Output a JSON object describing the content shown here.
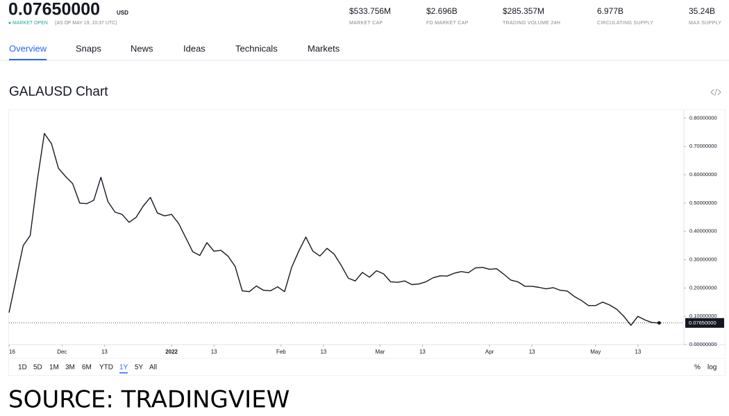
{
  "header": {
    "price": "0.07650000",
    "unit": "USD",
    "status": "MARKET OPEN",
    "as_of": "(AS OF MAY 19, 10:37 UTC)",
    "stats": [
      {
        "value": "$533.756M",
        "label": "MARKET CAP"
      },
      {
        "value": "$2.696B",
        "label": "FD MARKET CAP"
      },
      {
        "value": "$285.357M",
        "label": "TRADING VOLUME 24H"
      },
      {
        "value": "6.977B",
        "label": "CIRCULATING SUPPLY"
      },
      {
        "value": "35.24B",
        "label": "MAX SUPPLY"
      }
    ]
  },
  "tabs": {
    "items": [
      "Overview",
      "Snaps",
      "News",
      "Ideas",
      "Technicals",
      "Markets"
    ],
    "selected": 0
  },
  "chart_data": {
    "type": "line",
    "title": "GALAUSD Chart",
    "x": [
      "2021-11-16",
      "2021-11-18",
      "2021-11-20",
      "2021-11-22",
      "2021-11-24",
      "2021-11-26",
      "2021-11-28",
      "2021-11-30",
      "2021-12-02",
      "2021-12-04",
      "2021-12-06",
      "2021-12-08",
      "2021-12-10",
      "2021-12-12",
      "2021-12-14",
      "2021-12-16",
      "2021-12-18",
      "2021-12-20",
      "2021-12-22",
      "2021-12-24",
      "2021-12-26",
      "2021-12-28",
      "2021-12-30",
      "2022-01-01",
      "2022-01-03",
      "2022-01-05",
      "2022-01-07",
      "2022-01-09",
      "2022-01-11",
      "2022-01-13",
      "2022-01-15",
      "2022-01-17",
      "2022-01-19",
      "2022-01-21",
      "2022-01-23",
      "2022-01-25",
      "2022-01-27",
      "2022-01-29",
      "2022-01-31",
      "2022-02-02",
      "2022-02-04",
      "2022-02-06",
      "2022-02-08",
      "2022-02-10",
      "2022-02-12",
      "2022-02-14",
      "2022-02-16",
      "2022-02-18",
      "2022-02-20",
      "2022-02-22",
      "2022-02-24",
      "2022-02-26",
      "2022-02-28",
      "2022-03-02",
      "2022-03-04",
      "2022-03-06",
      "2022-03-08",
      "2022-03-10",
      "2022-03-12",
      "2022-03-14",
      "2022-03-16",
      "2022-03-18",
      "2022-03-20",
      "2022-03-22",
      "2022-03-24",
      "2022-03-26",
      "2022-03-28",
      "2022-03-30",
      "2022-04-01",
      "2022-04-03",
      "2022-04-05",
      "2022-04-07",
      "2022-04-09",
      "2022-04-11",
      "2022-04-13",
      "2022-04-15",
      "2022-04-17",
      "2022-04-19",
      "2022-04-21",
      "2022-04-23",
      "2022-04-25",
      "2022-04-27",
      "2022-04-29",
      "2022-05-01",
      "2022-05-03",
      "2022-05-05",
      "2022-05-07",
      "2022-05-09",
      "2022-05-11",
      "2022-05-13",
      "2022-05-15",
      "2022-05-17",
      "2022-05-19"
    ],
    "series": [
      {
        "name": "GALAUSD",
        "color": "#131722",
        "values": [
          0.113,
          0.232,
          0.35,
          0.385,
          0.58,
          0.746,
          0.71,
          0.623,
          0.594,
          0.569,
          0.5,
          0.498,
          0.51,
          0.591,
          0.505,
          0.468,
          0.46,
          0.432,
          0.45,
          0.49,
          0.52,
          0.465,
          0.455,
          0.46,
          0.428,
          0.378,
          0.328,
          0.315,
          0.36,
          0.33,
          0.333,
          0.312,
          0.276,
          0.19,
          0.187,
          0.207,
          0.192,
          0.19,
          0.204,
          0.187,
          0.273,
          0.33,
          0.38,
          0.33,
          0.313,
          0.34,
          0.32,
          0.28,
          0.235,
          0.225,
          0.255,
          0.238,
          0.261,
          0.25,
          0.222,
          0.22,
          0.225,
          0.212,
          0.214,
          0.222,
          0.236,
          0.243,
          0.242,
          0.252,
          0.258,
          0.254,
          0.271,
          0.273,
          0.266,
          0.268,
          0.249,
          0.228,
          0.222,
          0.206,
          0.206,
          0.202,
          0.197,
          0.201,
          0.192,
          0.189,
          0.17,
          0.156,
          0.138,
          0.138,
          0.15,
          0.14,
          0.125,
          0.1,
          0.068,
          0.1,
          0.087,
          0.078,
          0.0765
        ]
      }
    ],
    "xlim": [
      "2021-11-16",
      "2022-05-26"
    ],
    "xticks": [
      {
        "value": "2021-11-16",
        "label": "16"
      },
      {
        "value": "2021-12-01",
        "label": "Dec"
      },
      {
        "value": "2021-12-13",
        "label": "13"
      },
      {
        "value": "2022-01-01",
        "label": "2022"
      },
      {
        "value": "2022-01-13",
        "label": "13"
      },
      {
        "value": "2022-02-01",
        "label": "Feb"
      },
      {
        "value": "2022-02-13",
        "label": "13"
      },
      {
        "value": "2022-03-01",
        "label": "Mar"
      },
      {
        "value": "2022-03-13",
        "label": "13"
      },
      {
        "value": "2022-04-01",
        "label": "Apr"
      },
      {
        "value": "2022-04-13",
        "label": "13"
      },
      {
        "value": "2022-05-01",
        "label": "May"
      },
      {
        "value": "2022-05-13",
        "label": "13"
      }
    ],
    "ylim": [
      0,
      0.828
    ],
    "yticks": [
      {
        "value": 0,
        "label": "0.00000000"
      },
      {
        "value": 0.1,
        "label": "0.10000000"
      },
      {
        "value": 0.2,
        "label": "0.20000000"
      },
      {
        "value": 0.3,
        "label": "0.30000000"
      },
      {
        "value": 0.4,
        "label": "0.40000000"
      },
      {
        "value": 0.5,
        "label": "0.50000000"
      },
      {
        "value": 0.6,
        "label": "0.60000000"
      },
      {
        "value": 0.7,
        "label": "0.70000000"
      },
      {
        "value": 0.8,
        "label": "0.80000000"
      }
    ],
    "grid": false
  },
  "ranges": {
    "items": [
      "1D",
      "5D",
      "1M",
      "3M",
      "6M",
      "YTD",
      "1Y",
      "5Y",
      "All"
    ],
    "selected": 6,
    "options": [
      "%",
      "log"
    ]
  },
  "source": "SOURCE: TRADINGVIEW"
}
